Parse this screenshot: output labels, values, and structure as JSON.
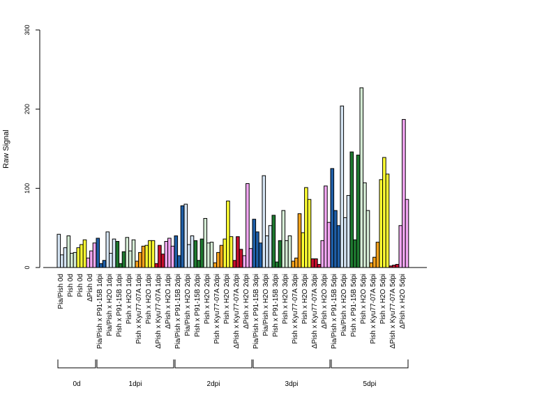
{
  "chart_data": {
    "type": "bar",
    "ylabel": "Raw Signal",
    "ylim": [
      0,
      300
    ],
    "yticks": [
      "0",
      "100",
      "200",
      "300"
    ],
    "grid": false,
    "legend": "none",
    "colors": {
      "pale_blue": "#d6e6f5",
      "blue": "#1f5fa8",
      "pale_green": "#d5ecd5",
      "green": "#1e7a30",
      "orange": "#f7a21b",
      "yellow": "#ffff33",
      "red": "#c8102e",
      "violet": "#f2a7f2"
    },
    "bar_groups": [
      {
        "label": "Pia/Pish 0d",
        "color": "pale_blue",
        "values": [
          42,
          16,
          25
        ]
      },
      {
        "label": "Pish 0d",
        "color": "pale_green",
        "values": [
          40,
          18,
          19
        ]
      },
      {
        "label": "Pish 0d",
        "color": "yellow",
        "values": [
          25,
          29,
          35
        ]
      },
      {
        "label": "ΔPish 0d",
        "color": "violet",
        "values": [
          12,
          21,
          31
        ]
      },
      {
        "label": "Pia/Pish x P91-15B 1dpi",
        "color": "blue",
        "values": [
          37,
          5,
          9
        ]
      },
      {
        "label": "Pia/Pish x H2O 1dpi",
        "color": "pale_blue",
        "values": [
          45,
          18,
          36
        ]
      },
      {
        "label": "Pish x P91-15B 1dpi",
        "color": "green",
        "values": [
          33,
          5,
          20
        ]
      },
      {
        "label": "Pish x H2O 1dpi",
        "color": "pale_green",
        "values": [
          38,
          21,
          35
        ]
      },
      {
        "label": "Pish x Kyu77-07A 1dpi",
        "color": "orange",
        "values": [
          8,
          19,
          27
        ]
      },
      {
        "label": "Pish x H2O 1dpi",
        "color": "yellow",
        "values": [
          28,
          34,
          34
        ]
      },
      {
        "label": "ΔPish x Kyu77-07A 1dpi",
        "color": "red",
        "values": [
          5,
          28,
          17
        ]
      },
      {
        "label": "ΔPish x H2O 1dpi",
        "color": "violet",
        "values": [
          33,
          37,
          27
        ]
      },
      {
        "label": "Pia/Pish x P91-15B 2dpi",
        "color": "blue",
        "values": [
          40,
          15,
          78
        ]
      },
      {
        "label": "Pia/Pish x H2O 2dpi",
        "color": "pale_blue",
        "values": [
          80,
          29,
          40
        ]
      },
      {
        "label": "Pish x P91-15B 2dpi",
        "color": "green",
        "values": [
          34,
          9,
          36
        ]
      },
      {
        "label": "Pish x H2O 2dpi",
        "color": "pale_green",
        "values": [
          62,
          31,
          32
        ]
      },
      {
        "label": "Pish x Kyu77-07A 2dpi",
        "color": "orange",
        "values": [
          6,
          19,
          28
        ]
      },
      {
        "label": "Pish x H2O 2dpi",
        "color": "yellow",
        "values": [
          36,
          84,
          39
        ]
      },
      {
        "label": "ΔPish x Kyu77-07A 2dpi",
        "color": "red",
        "values": [
          9,
          39,
          23
        ]
      },
      {
        "label": "ΔPish x H2O 2dpi",
        "color": "violet",
        "values": [
          15,
          106,
          24
        ]
      },
      {
        "label": "Pia/Pish x P91-15B 3dpi",
        "color": "blue",
        "values": [
          61,
          45,
          31
        ]
      },
      {
        "label": "Pia/Pish x H2O 3dpi",
        "color": "pale_blue",
        "values": [
          116,
          40,
          53
        ]
      },
      {
        "label": "Pish x P91-15B 3dpi",
        "color": "green",
        "values": [
          66,
          7,
          34
        ]
      },
      {
        "label": "Pish x H2O 3dpi",
        "color": "pale_green",
        "values": [
          72,
          34,
          40
        ]
      },
      {
        "label": "Pish x Kyu77-07A 3dpi",
        "color": "orange",
        "values": [
          8,
          12,
          68
        ]
      },
      {
        "label": "Pish x H2O 3dpi",
        "color": "yellow",
        "values": [
          44,
          101,
          86
        ]
      },
      {
        "label": "ΔPish x Kyu77-07A 3dpi",
        "color": "red",
        "values": [
          11,
          11,
          4
        ]
      },
      {
        "label": "ΔPish x H2O 3dpi",
        "color": "violet",
        "values": [
          34,
          103,
          57
        ]
      },
      {
        "label": "Pia/Pish x P91-15B 5dpi",
        "color": "blue",
        "values": [
          125,
          72,
          53
        ]
      },
      {
        "label": "Pia/Pish x H2O 5dpi",
        "color": "pale_blue",
        "values": [
          204,
          63,
          91
        ]
      },
      {
        "label": "Pish x P91-15B 5dpi",
        "color": "green",
        "values": [
          146,
          35,
          142
        ]
      },
      {
        "label": "Pish x H2O 5dpi",
        "color": "pale_green",
        "values": [
          227,
          107,
          72
        ]
      },
      {
        "label": "Pish x Kyu77-07A 5dpi",
        "color": "orange",
        "values": [
          6,
          13,
          32
        ]
      },
      {
        "label": "Pish x H2O 5dpi",
        "color": "yellow",
        "values": [
          111,
          139,
          118
        ]
      },
      {
        "label": "ΔPish x Kyu77-07A 5dpi",
        "color": "red",
        "values": [
          2,
          3,
          4
        ]
      },
      {
        "label": "ΔPish x H2O 5dpi",
        "color": "violet",
        "values": [
          53,
          187,
          86
        ]
      }
    ],
    "time_groups": [
      {
        "label": "0d",
        "first": 0,
        "last": 3
      },
      {
        "label": "1dpi",
        "first": 4,
        "last": 11
      },
      {
        "label": "2dpi",
        "first": 12,
        "last": 19
      },
      {
        "label": "3dpi",
        "first": 20,
        "last": 27
      },
      {
        "label": "5dpi",
        "first": 28,
        "last": 35
      }
    ]
  }
}
